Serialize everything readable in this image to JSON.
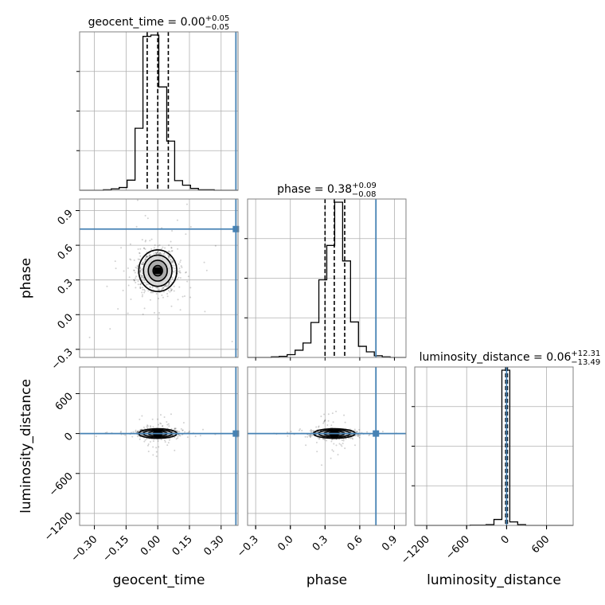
{
  "chart_data": {
    "type": "corner",
    "parameters": [
      "geocent_time",
      "phase",
      "luminosity_distance"
    ],
    "titles": [
      {
        "param": "geocent_time",
        "label": "geocent_time",
        "median": "0.00",
        "plus": "+0.05",
        "minus": "−0.05"
      },
      {
        "param": "phase",
        "label": "phase",
        "median": "0.38",
        "plus": "+0.09",
        "minus": "−0.08"
      },
      {
        "param": "luminosity_distance",
        "label": "luminosity_distance",
        "median": "0.06",
        "plus": "+12.31",
        "minus": "−13.49"
      }
    ],
    "truths": {
      "geocent_time": 0.37,
      "phase": 0.74,
      "luminosity_distance": 0
    },
    "truth_color": "#4682b4",
    "hist_color": "#000000",
    "ranges": {
      "geocent_time": [
        -0.37,
        0.38
      ],
      "phase": [
        -0.37,
        1.0
      ],
      "luminosity_distance": [
        -1380,
        1000
      ]
    },
    "ticks": {
      "geocent_time": [
        "−0.30",
        "−0.15",
        "0.00",
        "0.15",
        "0.30"
      ],
      "phase": [
        "−0.3",
        "0.0",
        "0.3",
        "0.6",
        "0.9"
      ],
      "luminosity_distance": [
        "−1200",
        "−600",
        "0",
        "600"
      ]
    },
    "tick_values": {
      "geocent_time": [
        -0.3,
        -0.15,
        0.0,
        0.15,
        0.3
      ],
      "phase": [
        -0.3,
        0.0,
        0.3,
        0.6,
        0.9
      ],
      "luminosity_distance": [
        -1200,
        -600,
        0,
        600
      ]
    },
    "quantiles": {
      "geocent_time": [
        -0.05,
        0.0,
        0.05
      ],
      "phase": [
        0.3,
        0.38,
        0.47
      ],
      "luminosity_distance": [
        -13.43,
        0.06,
        12.37
      ]
    },
    "histograms": {
      "geocent_time": {
        "edges": [
          -0.37,
          -0.3325,
          -0.295,
          -0.2575,
          -0.22,
          -0.1825,
          -0.145,
          -0.1075,
          -0.07,
          -0.0325,
          0.005,
          0.0425,
          0.08,
          0.1175,
          0.155,
          0.1925,
          0.23,
          0.2675,
          0.305,
          0.3425,
          0.38
        ],
        "counts": [
          0,
          0,
          0,
          1,
          3,
          6,
          22,
          135,
          335,
          338,
          225,
          107,
          21,
          11,
          4,
          1,
          1,
          0,
          0,
          0
        ]
      },
      "phase": {
        "edges": [
          -0.37,
          -0.3015,
          -0.233,
          -0.1645,
          -0.096,
          -0.0275,
          0.041,
          0.1095,
          0.178,
          0.2465,
          0.315,
          0.3835,
          0.452,
          0.5205,
          0.589,
          0.6575,
          0.726,
          0.7945,
          0.863,
          0.9315,
          1.0
        ],
        "counts": [
          0,
          0,
          0,
          1,
          2,
          5,
          13,
          26,
          63,
          140,
          202,
          280,
          174,
          64,
          20,
          10,
          3,
          1,
          0,
          0
        ]
      },
      "luminosity_distance": {
        "edges": [
          -1380,
          -1261,
          -1142,
          -1023,
          -904,
          -785,
          -666,
          -547,
          -428,
          -309,
          -190,
          -71,
          48,
          167,
          286,
          405,
          524,
          643,
          762,
          881,
          1000
        ],
        "counts": [
          0,
          0,
          0,
          0,
          0,
          0,
          0,
          1,
          1,
          3,
          22,
          575,
          13,
          3,
          0,
          0,
          0,
          0,
          0,
          0
        ]
      }
    },
    "joint": [
      {
        "x": "geocent_time",
        "y": "phase",
        "center": [
          0.0,
          0.38
        ],
        "sigma": [
          0.045,
          0.09
        ],
        "levels": [
          0.5,
          1.0,
          1.5,
          2.0
        ]
      },
      {
        "x": "geocent_time",
        "y": "luminosity_distance",
        "center": [
          0.0,
          0.06
        ],
        "sigma": [
          0.045,
          13.0
        ],
        "levels": [
          0.5,
          1.0,
          1.5,
          2.0
        ]
      },
      {
        "x": "phase",
        "y": "luminosity_distance",
        "center": [
          0.38,
          0.06
        ],
        "sigma": [
          0.09,
          13.0
        ],
        "levels": [
          0.5,
          1.0,
          1.5,
          2.0
        ]
      }
    ],
    "grid": true
  }
}
